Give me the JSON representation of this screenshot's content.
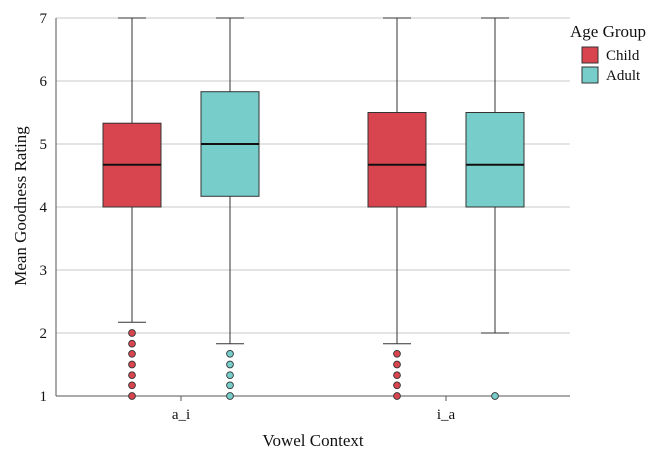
{
  "chart_data": {
    "type": "boxplot",
    "title": "",
    "xlabel": "Vowel Context",
    "ylabel": "Mean Goodness Rating",
    "ylim": [
      1,
      7
    ],
    "yticks": [
      "1",
      "2",
      "3",
      "4",
      "5",
      "6",
      "7"
    ],
    "categories": [
      "a_i",
      "i_a"
    ],
    "grid": "horizontal",
    "legend": {
      "title": "Age Group",
      "placement": "top-right"
    },
    "series": [
      {
        "name": "Child",
        "color": "#d9454f",
        "boxes": [
          {
            "category": "a_i",
            "whisker_low": 2.17,
            "q1": 4.0,
            "median": 4.67,
            "q3": 5.33,
            "whisker_high": 7.0,
            "outliers": [
              2.0,
              1.83,
              1.67,
              1.5,
              1.33,
              1.17,
              1.0
            ]
          },
          {
            "category": "i_a",
            "whisker_low": 1.83,
            "q1": 4.0,
            "median": 4.67,
            "q3": 5.5,
            "whisker_high": 7.0,
            "outliers": [
              1.67,
              1.5,
              1.33,
              1.17,
              1.0
            ]
          }
        ]
      },
      {
        "name": "Adult",
        "color": "#76cdca",
        "boxes": [
          {
            "category": "a_i",
            "whisker_low": 1.83,
            "q1": 4.17,
            "median": 5.0,
            "q3": 5.83,
            "whisker_high": 7.0,
            "outliers": [
              1.67,
              1.5,
              1.33,
              1.17,
              1.0
            ]
          },
          {
            "category": "i_a",
            "whisker_low": 2.0,
            "q1": 4.0,
            "median": 4.67,
            "q3": 5.5,
            "whisker_high": 7.0,
            "outliers": [
              1.0
            ]
          }
        ]
      }
    ]
  }
}
